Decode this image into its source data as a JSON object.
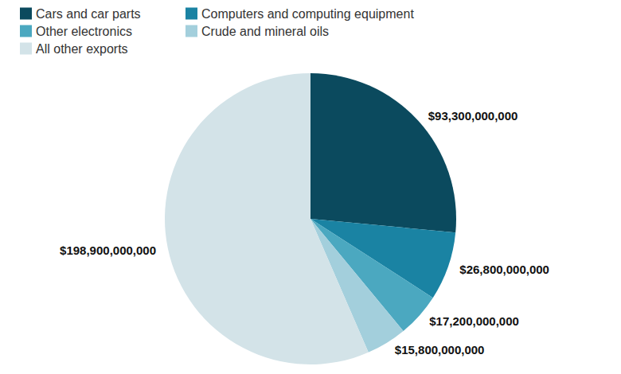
{
  "chart_data": {
    "type": "pie",
    "categories": [
      "Cars and car parts",
      "Computers and computing equipment",
      "Other electronics",
      "Crude and mineral oils",
      "All other exports"
    ],
    "values": [
      93300000000,
      26800000000,
      17200000000,
      15800000000,
      198900000000
    ],
    "value_labels": [
      "$93,300,000,000",
      "$26,800,000,000",
      "$17,200,000,000",
      "$15,800,000,000",
      "$198,900,000,000"
    ],
    "colors": [
      "#0b4a5e",
      "#1a83a3",
      "#4ba8c0",
      "#a3cfdc",
      "#d3e3e8"
    ],
    "legend": "top-left",
    "data_labels": true
  }
}
